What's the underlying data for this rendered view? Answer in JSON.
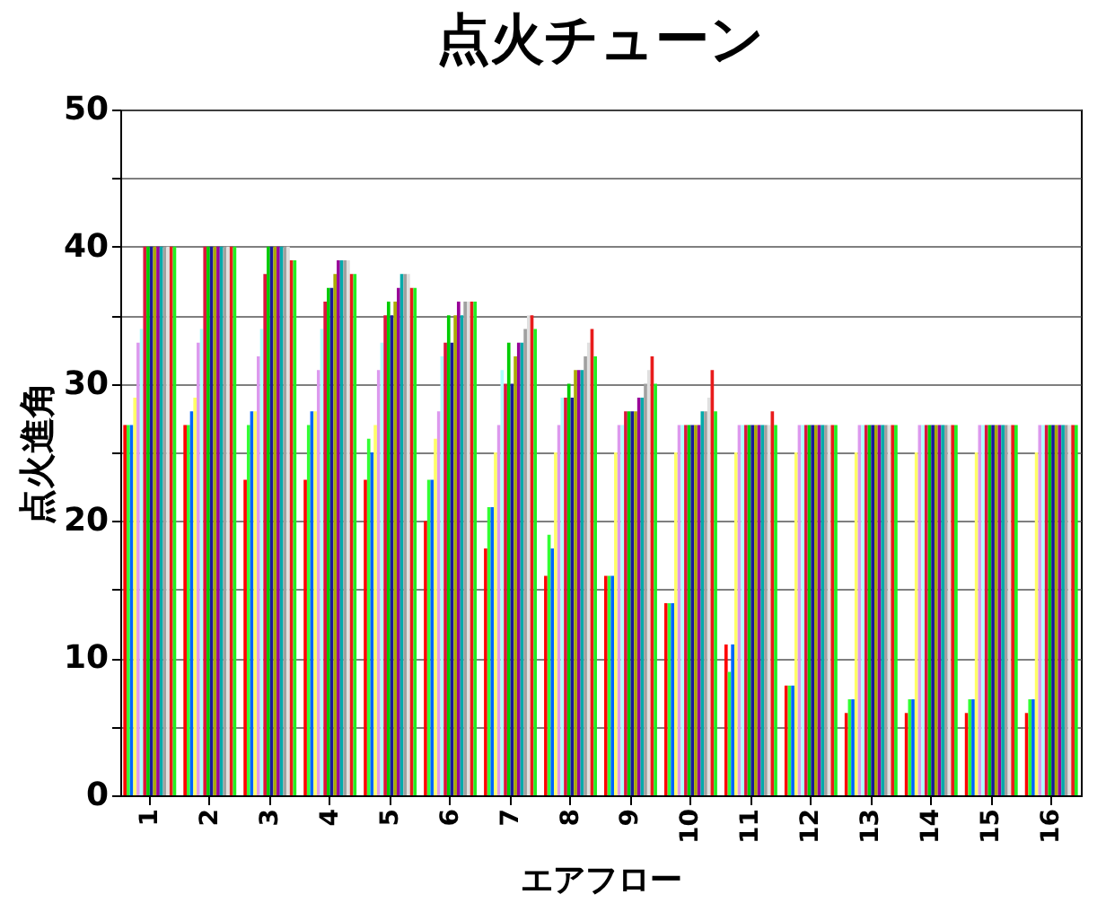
{
  "chart_data": {
    "type": "bar",
    "title": "点火チューン",
    "xlabel": "エアフロー",
    "ylabel": "点火進角",
    "categories": [
      "1",
      "2",
      "3",
      "4",
      "5",
      "6",
      "7",
      "8",
      "9",
      "10",
      "11",
      "12",
      "13",
      "14",
      "15",
      "16"
    ],
    "series": [
      {
        "color": "#ff0000",
        "values": [
          27,
          27,
          23,
          23,
          23,
          20,
          18,
          16,
          16,
          14,
          11,
          8,
          6,
          6,
          6,
          6
        ]
      },
      {
        "color": "#33ff33",
        "values": [
          27,
          27,
          27,
          27,
          26,
          23,
          21,
          19,
          16,
          14,
          9,
          8,
          7,
          7,
          7,
          7
        ]
      },
      {
        "color": "#0066ff",
        "values": [
          27,
          28,
          28,
          28,
          25,
          23,
          21,
          18,
          16,
          14,
          11,
          8,
          7,
          7,
          7,
          7
        ]
      },
      {
        "color": "#ffff66",
        "values": [
          29,
          29,
          28,
          28,
          27,
          26,
          25,
          25,
          25,
          25,
          25,
          25,
          25,
          25,
          25,
          25
        ]
      },
      {
        "color": "#dd99ee",
        "values": [
          33,
          33,
          32,
          31,
          31,
          28,
          27,
          27,
          27,
          27,
          27,
          27,
          27,
          27,
          27,
          27
        ]
      },
      {
        "color": "#aaffff",
        "values": [
          34,
          34,
          34,
          34,
          33,
          32,
          31,
          29,
          27,
          27,
          27,
          27,
          27,
          27,
          27,
          27
        ]
      },
      {
        "color": "#dc143c",
        "values": [
          40,
          40,
          38,
          36,
          35,
          33,
          30,
          29,
          28,
          27,
          27,
          27,
          27,
          27,
          27,
          27
        ]
      },
      {
        "color": "#00cc00",
        "values": [
          40,
          40,
          40,
          37,
          36,
          35,
          33,
          30,
          28,
          27,
          27,
          27,
          27,
          27,
          27,
          27
        ]
      },
      {
        "color": "#1a1a99",
        "values": [
          40,
          40,
          40,
          37,
          35,
          33,
          30,
          29,
          28,
          27,
          27,
          27,
          27,
          27,
          27,
          27
        ]
      },
      {
        "color": "#aaaa00",
        "values": [
          40,
          40,
          40,
          38,
          36,
          35,
          32,
          31,
          28,
          27,
          27,
          27,
          27,
          27,
          27,
          27
        ]
      },
      {
        "color": "#990099",
        "values": [
          40,
          40,
          40,
          39,
          37,
          36,
          33,
          31,
          29,
          27,
          27,
          27,
          27,
          27,
          27,
          27
        ]
      },
      {
        "color": "#00aaaa",
        "values": [
          40,
          40,
          40,
          39,
          38,
          35,
          33,
          31,
          29,
          28,
          27,
          27,
          27,
          27,
          27,
          27
        ]
      },
      {
        "color": "#a0a0a0",
        "values": [
          40,
          40,
          40,
          39,
          38,
          36,
          34,
          32,
          30,
          28,
          27,
          27,
          27,
          27,
          27,
          27
        ]
      },
      {
        "color": "#e0e0e0",
        "values": [
          40,
          40,
          40,
          39,
          38,
          36,
          35,
          33,
          31,
          29,
          27,
          27,
          27,
          27,
          27,
          27
        ]
      },
      {
        "color": "#e81c1c",
        "values": [
          40,
          40,
          39,
          38,
          37,
          36,
          35,
          34,
          32,
          31,
          28,
          27,
          27,
          27,
          27,
          27
        ]
      },
      {
        "color": "#22ee22",
        "values": [
          40,
          40,
          39,
          38,
          37,
          36,
          34,
          32,
          30,
          28,
          27,
          27,
          27,
          27,
          27,
          27
        ]
      }
    ],
    "ylim": [
      0,
      50
    ],
    "yticks": [
      0,
      {
        "value": 5,
        "label": null
      },
      10,
      {
        "value": 15,
        "label": null
      },
      20,
      {
        "value": 25,
        "label": null
      },
      30,
      {
        "value": 35,
        "label": null
      },
      40,
      {
        "value": 45,
        "label": null
      },
      50
    ],
    "grid": "y"
  }
}
